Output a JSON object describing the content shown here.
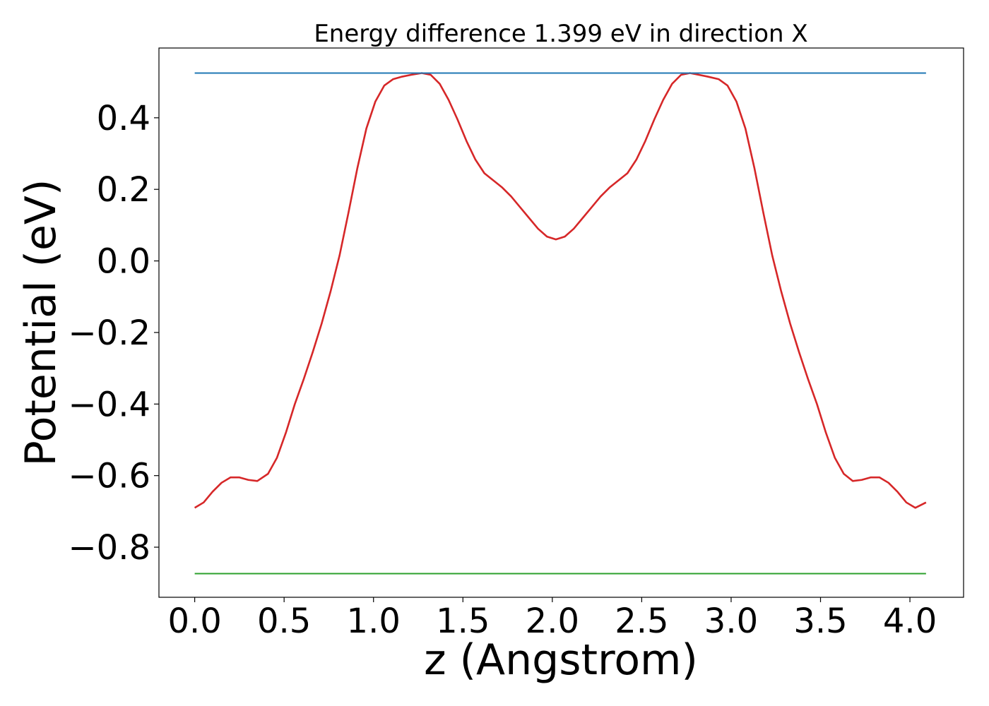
{
  "chart_data": {
    "type": "line",
    "title": "Energy difference 1.399 eV in direction X",
    "xlabel": "z (Angstrom)",
    "ylabel": "Potential (eV)",
    "xlim": [
      -0.2,
      4.3
    ],
    "ylim": [
      -0.94,
      0.595
    ],
    "x_ticks": [
      0.0,
      0.5,
      1.0,
      1.5,
      2.0,
      2.5,
      3.0,
      3.5,
      4.0
    ],
    "x_tick_labels": [
      "0.0",
      "0.5",
      "1.0",
      "1.5",
      "2.0",
      "2.5",
      "3.0",
      "3.5",
      "4.0"
    ],
    "y_ticks": [
      0.4,
      0.2,
      0.0,
      -0.2,
      -0.4,
      -0.6,
      -0.8
    ],
    "y_tick_labels": [
      "0.4",
      "0.2",
      "0.0",
      "−0.2",
      "−0.4",
      "−0.6",
      "−0.8"
    ],
    "grid": false,
    "legend": "none",
    "series": [
      {
        "color": "#d62728",
        "x": [
          0.0,
          0.05,
          0.1,
          0.15,
          0.2,
          0.25,
          0.3,
          0.35,
          0.41,
          0.46,
          0.51,
          0.56,
          0.61,
          0.66,
          0.71,
          0.76,
          0.81,
          0.86,
          0.91,
          0.96,
          1.01,
          1.06,
          1.11,
          1.16,
          1.21,
          1.27,
          1.32,
          1.37,
          1.42,
          1.47,
          1.52,
          1.57,
          1.62,
          1.67,
          1.72,
          1.77,
          1.82,
          1.87,
          1.92,
          1.97,
          2.02,
          2.07,
          2.12,
          2.17,
          2.22,
          2.27,
          2.32,
          2.37,
          2.42,
          2.47,
          2.52,
          2.57,
          2.62,
          2.67,
          2.72,
          2.77,
          2.82,
          2.87,
          2.93,
          2.98,
          3.03,
          3.08,
          3.13,
          3.18,
          3.23,
          3.28,
          3.33,
          3.38,
          3.43,
          3.48,
          3.53,
          3.58,
          3.63,
          3.68,
          3.73,
          3.78,
          3.83,
          3.88,
          3.93,
          3.98,
          4.03,
          4.09
        ],
        "y": [
          -0.69,
          -0.675,
          -0.645,
          -0.62,
          -0.605,
          -0.605,
          -0.612,
          -0.615,
          -0.595,
          -0.55,
          -0.48,
          -0.4,
          -0.33,
          -0.255,
          -0.175,
          -0.085,
          0.015,
          0.135,
          0.26,
          0.37,
          0.445,
          0.49,
          0.508,
          0.515,
          0.52,
          0.525,
          0.52,
          0.495,
          0.45,
          0.395,
          0.335,
          0.283,
          0.245,
          0.225,
          0.205,
          0.18,
          0.15,
          0.12,
          0.09,
          0.068,
          0.06,
          0.068,
          0.09,
          0.12,
          0.15,
          0.18,
          0.205,
          0.225,
          0.245,
          0.283,
          0.335,
          0.395,
          0.45,
          0.495,
          0.52,
          0.525,
          0.52,
          0.515,
          0.508,
          0.49,
          0.445,
          0.37,
          0.26,
          0.135,
          0.015,
          -0.085,
          -0.175,
          -0.255,
          -0.33,
          -0.4,
          -0.48,
          -0.55,
          -0.595,
          -0.615,
          -0.612,
          -0.605,
          -0.605,
          -0.62,
          -0.645,
          -0.675,
          -0.69,
          -0.675
        ]
      },
      {
        "color": "#1f77b4",
        "x": [
          0.0,
          4.09
        ],
        "y": [
          0.525,
          0.525
        ]
      },
      {
        "color": "#2ca02c",
        "x": [
          0.0,
          4.09
        ],
        "y": [
          -0.874,
          -0.874
        ]
      }
    ]
  }
}
